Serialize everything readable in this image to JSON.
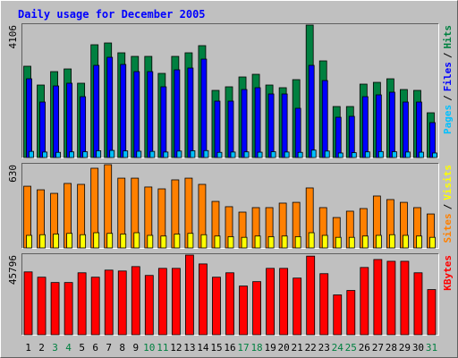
{
  "chart_data": [
    {
      "type": "bar",
      "title": "Daily usage for December 2005",
      "categories": [
        "1",
        "2",
        "3",
        "4",
        "5",
        "6",
        "7",
        "8",
        "9",
        "10",
        "11",
        "12",
        "13",
        "14",
        "15",
        "16",
        "17",
        "18",
        "19",
        "20",
        "21",
        "22",
        "23",
        "24",
        "25",
        "26",
        "27",
        "28",
        "29",
        "30",
        "31"
      ],
      "category_colors": [
        "#000000",
        "#000000",
        "#008040",
        "#008040",
        "#000000",
        "#000000",
        "#000000",
        "#000000",
        "#000000",
        "#008040",
        "#008040",
        "#000000",
        "#000000",
        "#000000",
        "#000000",
        "#000000",
        "#008040",
        "#008040",
        "#000000",
        "#000000",
        "#000000",
        "#000000",
        "#000000",
        "#008040",
        "#008040",
        "#000000",
        "#000000",
        "#000000",
        "#000000",
        "#000000",
        "#008040"
      ],
      "ylim": [
        0,
        4106
      ],
      "yticks": [
        4106
      ],
      "legend_separator": "/",
      "series": [
        {
          "name": "Pages",
          "color": "#00c0ff",
          "values": [
            190,
            170,
            160,
            175,
            180,
            210,
            220,
            205,
            195,
            190,
            170,
            200,
            210,
            215,
            160,
            170,
            175,
            165,
            180,
            170,
            160,
            230,
            200,
            140,
            150,
            175,
            185,
            180,
            170,
            165,
            140
          ]
        },
        {
          "name": "Files",
          "color": "#0000ff",
          "values": [
            2441,
            1720,
            2219,
            2303,
            1886,
            2857,
            3107,
            2885,
            2663,
            2663,
            2192,
            2719,
            2774,
            3051,
            1748,
            1748,
            2108,
            2164,
            1970,
            1970,
            1526,
            2857,
            2386,
            1248,
            1276,
            1886,
            1942,
            2025,
            1720,
            1720,
            1082
          ]
        },
        {
          "name": "Hits",
          "color": "#008040",
          "values": [
            2830,
            2247,
            2663,
            2746,
            2303,
            3496,
            3551,
            3246,
            3135,
            3135,
            2608,
            3135,
            3246,
            3468,
            2081,
            2192,
            2497,
            2580,
            2247,
            2164,
            2414,
            4106,
            2996,
            1581,
            1581,
            2275,
            2330,
            2441,
            2108,
            2081,
            1387
          ]
        }
      ]
    },
    {
      "type": "bar",
      "ylim": [
        0,
        630
      ],
      "yticks": [
        630
      ],
      "legend_separator": "/",
      "series": [
        {
          "name": "Sites",
          "color": "#ff8000",
          "values": [
            467,
            440,
            413,
            488,
            481,
            603,
            630,
            528,
            528,
            461,
            447,
            515,
            528,
            481,
            352,
            312,
            271,
            305,
            305,
            339,
            345,
            454,
            305,
            230,
            278,
            298,
            393,
            366,
            345,
            305,
            257
          ]
        },
        {
          "name": "Visits",
          "color": "#ffff00",
          "values": [
            95,
            100,
            105,
            110,
            100,
            115,
            110,
            105,
            115,
            95,
            90,
            105,
            110,
            100,
            90,
            85,
            80,
            90,
            85,
            90,
            85,
            115,
            95,
            80,
            80,
            90,
            95,
            100,
            95,
            90,
            80
          ]
        }
      ]
    },
    {
      "type": "bar",
      "ylim": [
        0,
        45796
      ],
      "yticks": [
        45796
      ],
      "series": [
        {
          "name": "KBytes",
          "color": "#ff0000",
          "values": [
            36127,
            33075,
            30021,
            30021,
            35618,
            33075,
            37145,
            36636,
            39180,
            34091,
            38162,
            38162,
            45796,
            40707,
            33075,
            35618,
            27985,
            30530,
            38162,
            38162,
            32565,
            45200,
            35109,
            22898,
            25442,
            38671,
            43251,
            42233,
            42233,
            35618,
            25950
          ]
        }
      ]
    }
  ]
}
